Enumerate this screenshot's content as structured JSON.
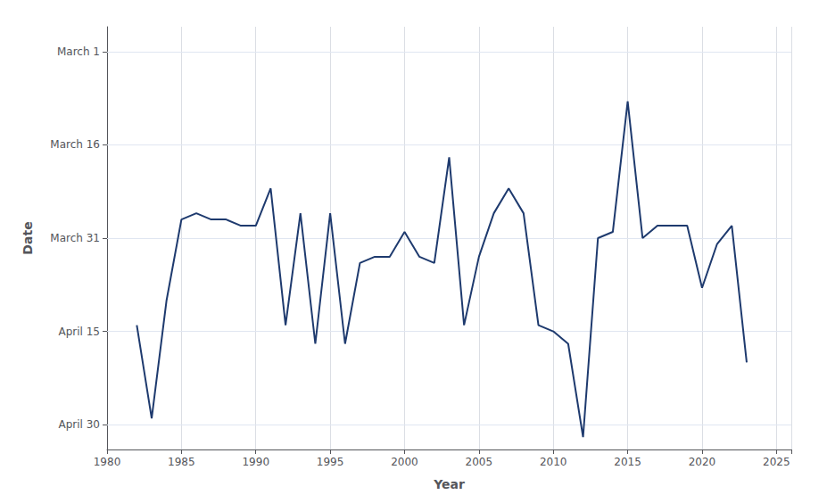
{
  "chart_data": {
    "type": "line",
    "x": [
      1982,
      1983,
      1984,
      1985,
      1986,
      1987,
      1988,
      1989,
      1990,
      1991,
      1992,
      1993,
      1994,
      1995,
      1996,
      1997,
      1998,
      1999,
      2000,
      2001,
      2002,
      2003,
      2004,
      2005,
      2006,
      2007,
      2008,
      2009,
      2010,
      2011,
      2012,
      2013,
      2014,
      2015,
      2016,
      2017,
      2018,
      2019,
      2020,
      2021,
      2022,
      2023
    ],
    "values": [
      104,
      119,
      100,
      87,
      86,
      87,
      87,
      88,
      88,
      82,
      104,
      86,
      107,
      86,
      107,
      94,
      93,
      93,
      89,
      93,
      94,
      77,
      104,
      93,
      86,
      82,
      86,
      104,
      105,
      107,
      122,
      90,
      89,
      68,
      90,
      88,
      88,
      88,
      98,
      91,
      88,
      110
    ],
    "color": "#1e3a6e",
    "xlabel": "Year",
    "ylabel": "Date",
    "xlim": [
      1980,
      2026
    ],
    "xticks": [
      1980,
      1985,
      1990,
      1995,
      2000,
      2005,
      2010,
      2015,
      2020,
      2025
    ],
    "ylim": [
      124,
      56
    ],
    "yticks": [
      {
        "value": 60,
        "label": "March 1"
      },
      {
        "value": 75,
        "label": "March 16"
      },
      {
        "value": 90,
        "label": "March 31"
      },
      {
        "value": 105,
        "label": "April 15"
      },
      {
        "value": 120,
        "label": "April 30"
      }
    ],
    "grid": true
  }
}
